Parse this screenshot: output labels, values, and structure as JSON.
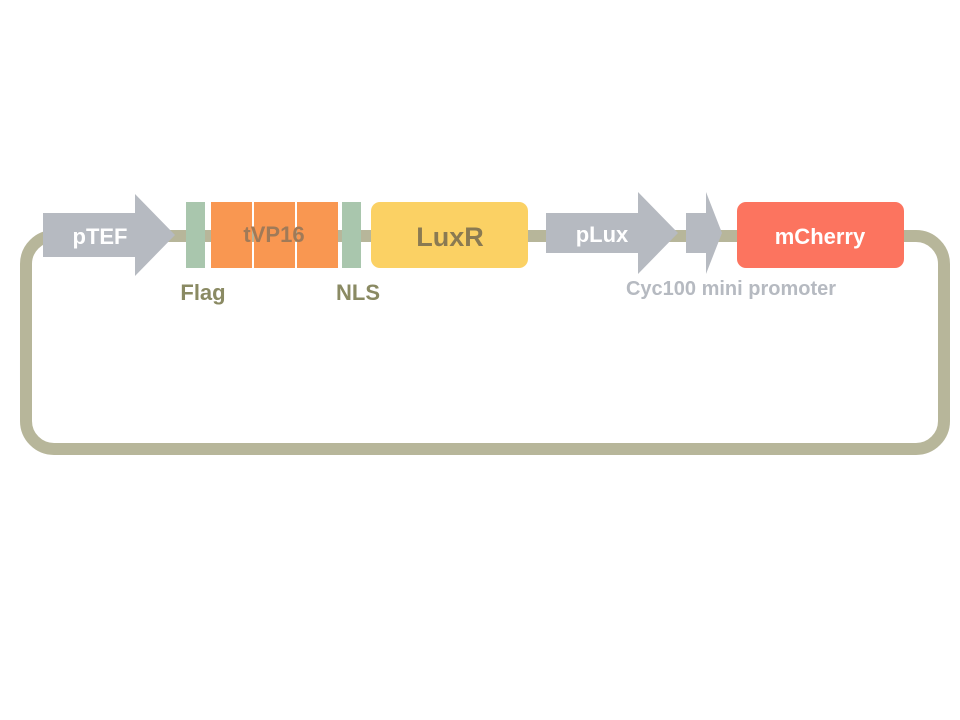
{
  "parts": {
    "pTEF": "pTEF",
    "flag": "Flag",
    "tVP16": "tVP16",
    "nls": "NLS",
    "luxR": "LuxR",
    "pLux": "pLux",
    "cyc100": "Cyc100 mini promoter",
    "mCherry": "mCherry"
  },
  "colors": {
    "backbone": "#b7b69a",
    "promoter": "#b6bac1",
    "small_tag": "#a9c6ad",
    "tVP16": "#f99751",
    "luxR": "#fbd164",
    "mCherry": "#fc745f",
    "tag_label": "#8a8a63",
    "tVP16_label": "#a07a58",
    "luxR_label": "#8a7a52",
    "cyc100_label": "#b6bac1"
  }
}
